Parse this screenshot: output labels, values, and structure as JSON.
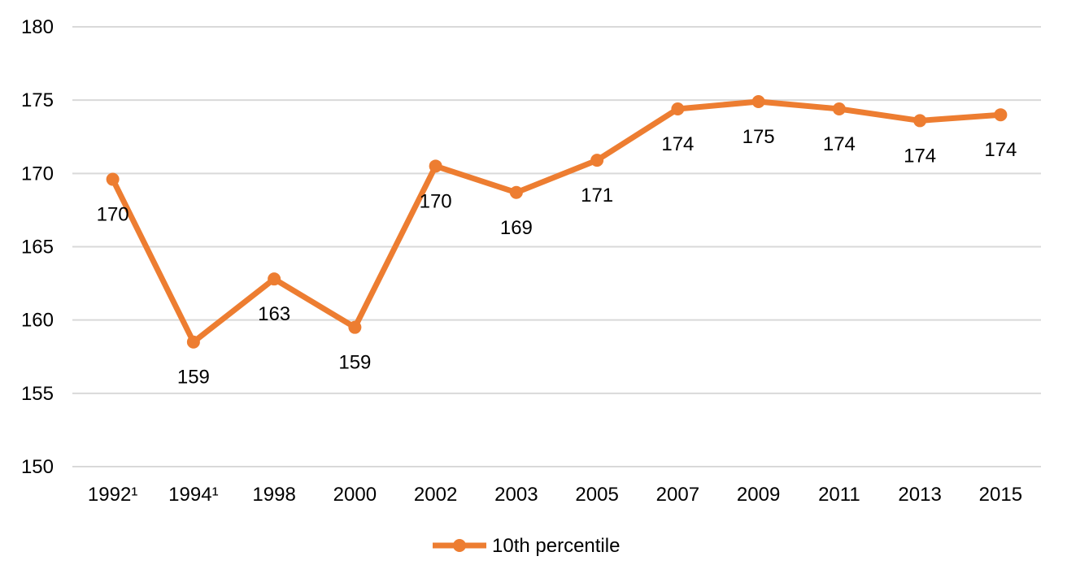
{
  "chart_data": {
    "type": "line",
    "categories": [
      "1992¹",
      "1994¹",
      "1998",
      "2000",
      "2002",
      "2003",
      "2005",
      "2007",
      "2009",
      "2011",
      "2013",
      "2015"
    ],
    "series": [
      {
        "name": "10th percentile",
        "values": [
          169.6,
          158.5,
          162.8,
          159.5,
          170.5,
          168.7,
          170.9,
          174.4,
          174.9,
          174.4,
          173.6,
          174.0
        ],
        "labels": [
          "170",
          "159",
          "163",
          "159",
          "170",
          "169",
          "171",
          "174",
          "175",
          "174",
          "174",
          "174"
        ],
        "color": "#ED7D31"
      }
    ],
    "ylim": [
      150,
      180
    ],
    "yticks": [
      150,
      155,
      160,
      165,
      170,
      175,
      180
    ],
    "grid": true,
    "legend_position": "bottom",
    "gridline_color": "#D9D9D9"
  }
}
